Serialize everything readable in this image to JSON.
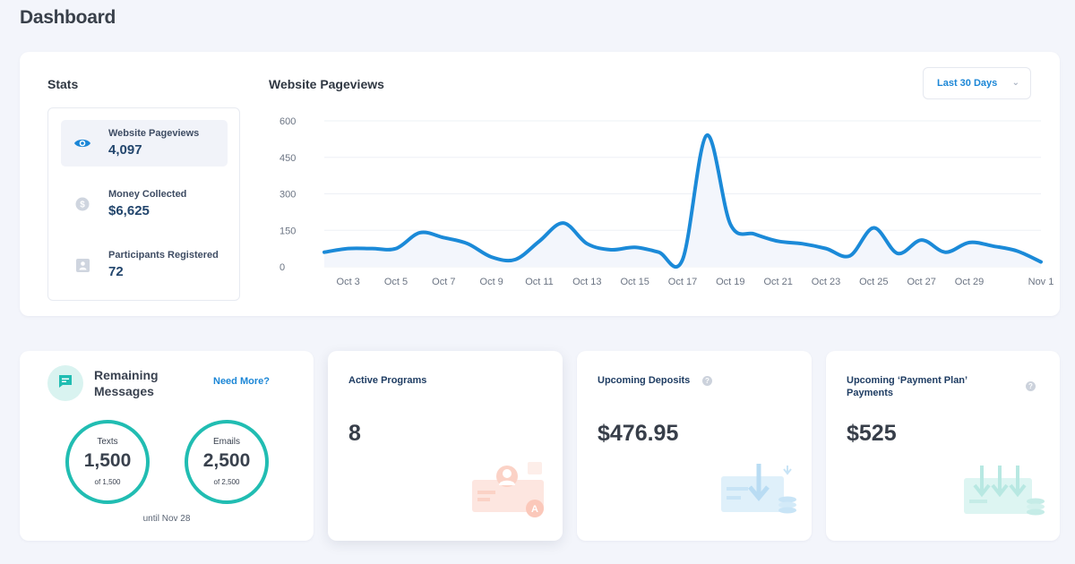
{
  "page": {
    "title": "Dashboard"
  },
  "stats": {
    "title": "Stats",
    "items": [
      {
        "icon": "eye-icon",
        "label": "Website Pageviews",
        "value": "4,097"
      },
      {
        "icon": "dollar-icon",
        "label": "Money Collected",
        "value": "$6,625"
      },
      {
        "icon": "participant-icon",
        "label": "Participants Registered",
        "value": "72"
      }
    ]
  },
  "pageviews": {
    "title": "Website Pageviews",
    "range_label": "Last 30 Days"
  },
  "chart_data": {
    "type": "area",
    "title": "Website Pageviews",
    "xlabel": "",
    "ylabel": "",
    "ylim": [
      0,
      600
    ],
    "yticks": [
      "600",
      "450",
      "300",
      "150",
      "0"
    ],
    "ytick_values": [
      600,
      450,
      300,
      150,
      0
    ],
    "xtick_labels": [
      "Oct 3",
      "Oct 5",
      "Oct 7",
      "Oct 9",
      "Oct 11",
      "Oct 13",
      "Oct 15",
      "Oct 17",
      "Oct 19",
      "Oct 21",
      "Oct 23",
      "Oct 25",
      "Oct 27",
      "Oct 29",
      "Nov 1"
    ],
    "xtick_days": [
      1,
      3,
      5,
      7,
      9,
      11,
      13,
      15,
      17,
      19,
      21,
      23,
      25,
      27,
      30
    ],
    "series": [
      {
        "name": "Pageviews",
        "color": "#1b8ad8",
        "values": [
          60,
          75,
          75,
          75,
          140,
          120,
          95,
          40,
          30,
          105,
          180,
          95,
          70,
          80,
          60,
          30,
          540,
          175,
          135,
          105,
          95,
          75,
          45,
          160,
          55,
          110,
          60,
          100,
          85,
          65,
          20
        ]
      }
    ]
  },
  "messages": {
    "title": "Remaining Messages",
    "need_more": "Need More?",
    "texts": {
      "label": "Texts",
      "value": "1,500",
      "sub": "of 1,500"
    },
    "emails": {
      "label": "Emails",
      "value": "2,500",
      "sub": "of 2,500"
    },
    "until": "until Nov 28"
  },
  "programs": {
    "title": "Active Programs",
    "value": "8"
  },
  "deposits": {
    "title": "Upcoming Deposits",
    "value": "$476.95"
  },
  "plan": {
    "title": "Upcoming ‘Payment Plan’ Payments",
    "value": "$525"
  },
  "colors": {
    "accent": "#1b86d6",
    "teal": "#21bdb2",
    "chart_line": "#1b8ad8"
  }
}
